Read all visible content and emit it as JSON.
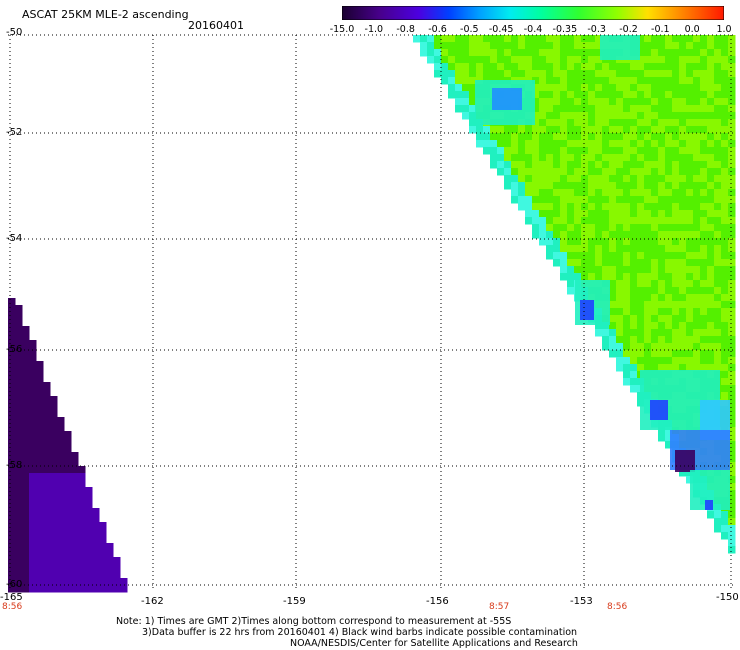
{
  "header": {
    "title": "ASCAT 25KM MLE-2 ascending",
    "date": "20160401"
  },
  "colorbar": {
    "labels": [
      "-15.0",
      "-1.0",
      "-0.8",
      "-0.6",
      "-0.5",
      "-0.45",
      "-0.4",
      "-0.35",
      "-0.3",
      "-0.2",
      "-0.1",
      "0.0",
      "1.0"
    ],
    "colors": [
      "#1a0030",
      "#38006a",
      "#5c00b4",
      "#3c00e8",
      "#0050ff",
      "#00a8ff",
      "#00e8f0",
      "#00ffa8",
      "#30ff40",
      "#a8ff00",
      "#ffd800",
      "#ff7800",
      "#ff2000"
    ]
  },
  "axes": {
    "lat_labels": [
      "-50",
      "-52",
      "-54",
      "-56",
      "-58",
      "-60"
    ],
    "lon_labels": [
      "-165",
      "-162",
      "-159",
      "-156",
      "-153",
      "-150"
    ]
  },
  "orbit_times": [
    "8:56",
    "8:57",
    "8:56"
  ],
  "notes": {
    "line1": "Note: 1) Times are GMT 2)Times along bottom correspond to measurement at -55S",
    "line2": "3)Data buffer is 22 hrs from 20160401 4) Black wind barbs indicate possible contamination",
    "line3": "NOAA/NESDIS/Center for Satellite Applications and Research"
  },
  "swath_colors": {
    "green": "#54f000",
    "green_light": "#88f800",
    "cyan": "#20f0c0",
    "blue": "#2040ff",
    "dark_blue": "#1000c0",
    "purple_dark": "#3a0060",
    "purple": "#5000b0"
  }
}
